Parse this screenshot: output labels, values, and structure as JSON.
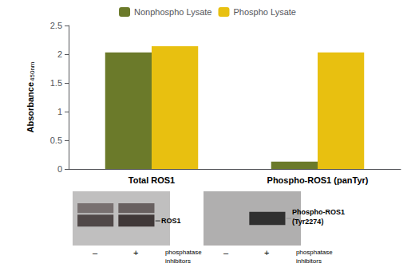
{
  "chart_data": {
    "type": "bar",
    "categories": [
      "Total ROS1",
      "Phospho-ROS1 (panTyr)"
    ],
    "series": [
      {
        "name": "Nonphospho Lysate",
        "color": "#6b7a2a",
        "values": [
          2.03,
          0.13
        ]
      },
      {
        "name": "Phospho Lysate",
        "color": "#e8c010",
        "values": [
          2.14,
          2.03
        ]
      }
    ],
    "ylabel": "Absorbance",
    "ylabel_subscript": "450nm",
    "ylim": [
      0,
      2.5
    ],
    "yticks": [
      0,
      0.5,
      1,
      1.5,
      2,
      2.5
    ],
    "grid": false,
    "legend": "top",
    "annotations": [
      {
        "blot_label": [
          "ROS1"
        ],
        "lanes": [
          "–",
          "+"
        ],
        "lane_caption": [
          "phosphatase",
          "inhibitors"
        ]
      },
      {
        "blot_label": [
          "Phospho-ROS1",
          "(Tyr2274)"
        ],
        "lanes": [
          "–",
          "+"
        ],
        "lane_caption": [
          "phosphatase",
          "inhibitors"
        ]
      }
    ]
  }
}
